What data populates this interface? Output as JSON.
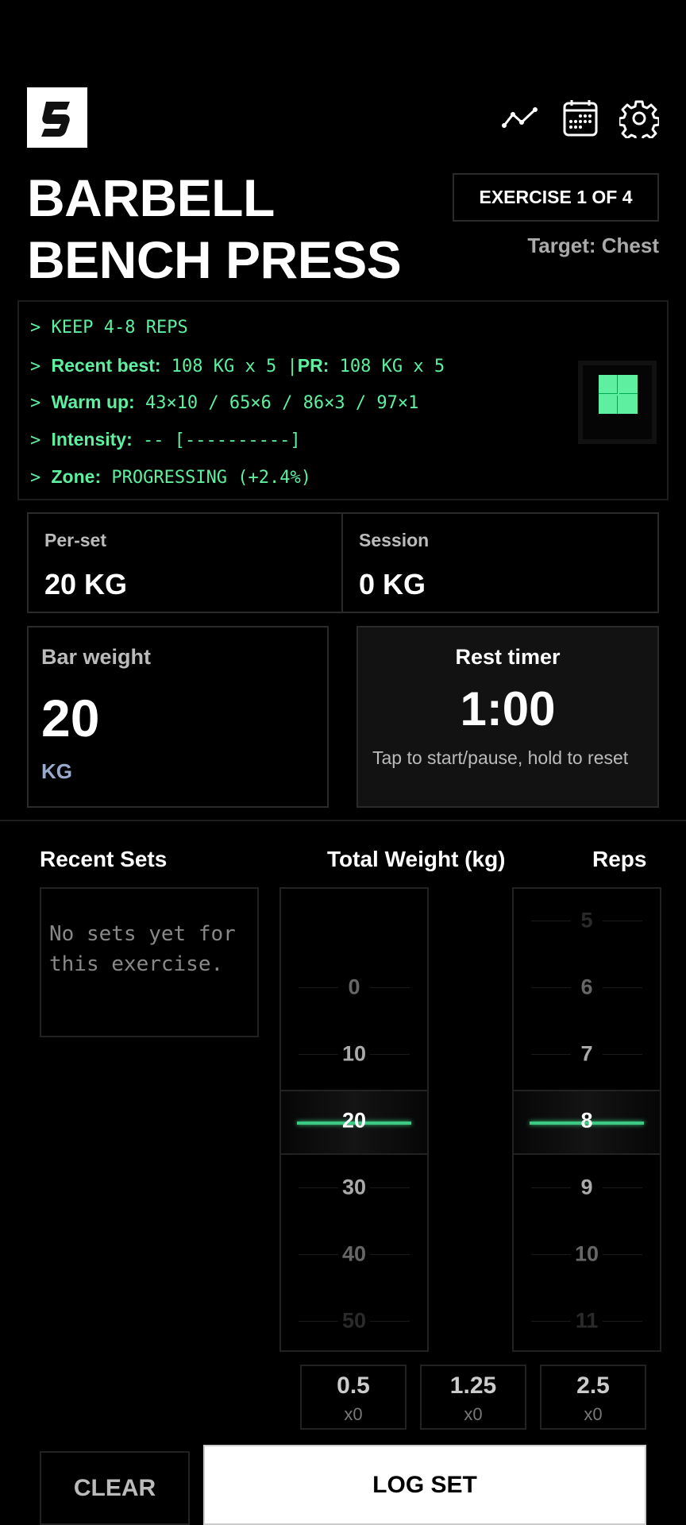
{
  "header": {
    "logo_icon": "s-logo",
    "icons": [
      "trend-line-icon",
      "calendar-icon",
      "gear-icon"
    ],
    "title_line1": "BARBELL",
    "title_line2": "BENCH PRESS",
    "exercise_badge": "EXERCISE 1 OF 4",
    "target": "Target: Chest"
  },
  "terminal": {
    "prompt": ">",
    "line1": "KEEP 4-8 REPS",
    "recent_best_label": "Recent best:",
    "recent_best_value": "108 KG x 5",
    "separator": "|",
    "pr_label": "PR:",
    "pr_value": "108 KG x 5",
    "warmup_label": "Warm up:",
    "warmup_value": "43×10 / 65×6 / 86×3 / 97×1",
    "intensity_label": "Intensity:",
    "intensity_value": "-- [----------]",
    "zone_label": "Zone:",
    "zone_value": "PROGRESSING (+2.4%)",
    "accent": "#5ef0a0"
  },
  "stats": {
    "per_set_label": "Per-set",
    "per_set_value": "20 KG",
    "session_label": "Session",
    "session_value": "0 KG"
  },
  "bar_weight": {
    "label": "Bar weight",
    "value": "20",
    "unit": "KG"
  },
  "rest_timer": {
    "label": "Rest timer",
    "value": "1:00",
    "hint": "Tap to start/pause, hold to reset"
  },
  "log": {
    "recent_sets_header": "Recent Sets",
    "recent_sets_empty": "No sets yet for this exercise.",
    "weight_header": "Total Weight (kg)",
    "reps_header": "Reps",
    "weight_values": [
      "",
      "0",
      "10",
      "20",
      "30",
      "40",
      "50"
    ],
    "weight_selected": "20",
    "reps_values": [
      "5",
      "6",
      "7",
      "8",
      "9",
      "10",
      "11"
    ],
    "reps_selected": "8",
    "plates": [
      {
        "value": "0.5",
        "count": "x0"
      },
      {
        "value": "1.25",
        "count": "x0"
      },
      {
        "value": "2.5",
        "count": "x0"
      }
    ],
    "clear_label": "CLEAR",
    "log_label": "LOG SET"
  }
}
